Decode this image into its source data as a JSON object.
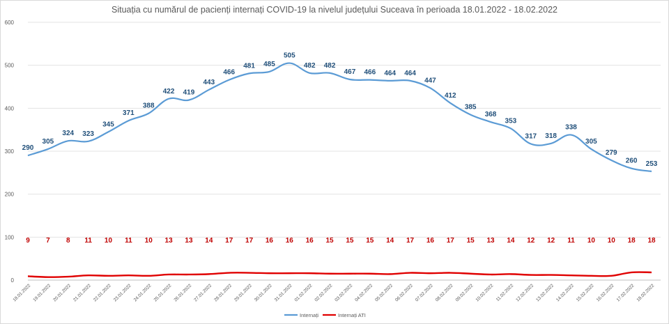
{
  "chart_data": {
    "type": "line",
    "title": "Situația cu numărul de pacienți internați COVID-19 la nivelul județului Suceava în perioada 18.01.2022 - 18.02.2022",
    "xlabel": "",
    "ylabel": "",
    "ylim": [
      0,
      600
    ],
    "yticks": [
      "0",
      "100",
      "200",
      "300",
      "400",
      "500",
      "600"
    ],
    "grid": true,
    "legend_position": "bottom",
    "categories": [
      "18.01.2022",
      "19.01.2022",
      "20.01.2022",
      "21.01.2022",
      "22.01.2022",
      "23.01.2022",
      "24.01.2022",
      "25.01.2022",
      "26.01.2022",
      "27.01.2022",
      "28.01.2022",
      "29.01.2022",
      "30.01.2022",
      "31.01.2022",
      "01.02.2022",
      "02.02.2022",
      "03.02.2022",
      "04.02.2022",
      "05.02.2022",
      "06.02.2022",
      "07.02.2022",
      "08.02.2022",
      "09.02.2022",
      "10.02.2022",
      "11.02.2022",
      "12.02.2022",
      "13.02.2022",
      "14.02.2022",
      "15.02.2022",
      "16.02.2022",
      "17.02.2022",
      "18.02.2022"
    ],
    "series": [
      {
        "name": "Internați",
        "color": "#5b9bd5",
        "label_color": "#1f4e79",
        "values": [
          290,
          305,
          324,
          323,
          345,
          371,
          388,
          422,
          419,
          443,
          466,
          481,
          485,
          505,
          482,
          482,
          467,
          466,
          464,
          464,
          447,
          412,
          385,
          368,
          353,
          317,
          318,
          338,
          305,
          279,
          260,
          253
        ]
      },
      {
        "name": "Internați ATI",
        "color": "#e00000",
        "label_color": "#c00000",
        "values": [
          9,
          7,
          8,
          11,
          10,
          11,
          10,
          13,
          13,
          14,
          17,
          17,
          16,
          16,
          16,
          15,
          15,
          15,
          14,
          17,
          16,
          17,
          15,
          13,
          14,
          12,
          12,
          11,
          10,
          10,
          18,
          18
        ]
      }
    ]
  }
}
